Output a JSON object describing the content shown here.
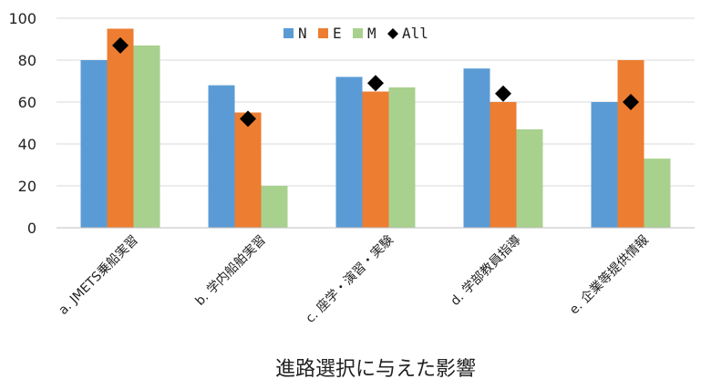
{
  "chart_data": {
    "type": "bar",
    "title": "",
    "xlabel": "進路選択に与えた影響",
    "ylabel": "",
    "ylim": [
      0,
      100
    ],
    "yticks": [
      0,
      20,
      40,
      60,
      80,
      100
    ],
    "grid": true,
    "legend_position": "top-center",
    "categories": [
      "a. JMETS乗船実習",
      "b. 学内船舶実習",
      "c. 座学・演習・実験",
      "d. 学部教員指導",
      "e. 企業等提供情報"
    ],
    "series": [
      {
        "name": "N",
        "values": [
          80,
          68,
          72,
          76,
          60
        ],
        "color": "#5b9bd5"
      },
      {
        "name": "E",
        "values": [
          95,
          55,
          65,
          60,
          80
        ],
        "color": "#ed7d31"
      },
      {
        "name": "M",
        "values": [
          87,
          20,
          67,
          47,
          33
        ],
        "color": "#a9d18e"
      }
    ],
    "markers": {
      "name": "All",
      "values": [
        87,
        52,
        69,
        64,
        60
      ],
      "color": "#000000",
      "shape": "diamond"
    }
  }
}
